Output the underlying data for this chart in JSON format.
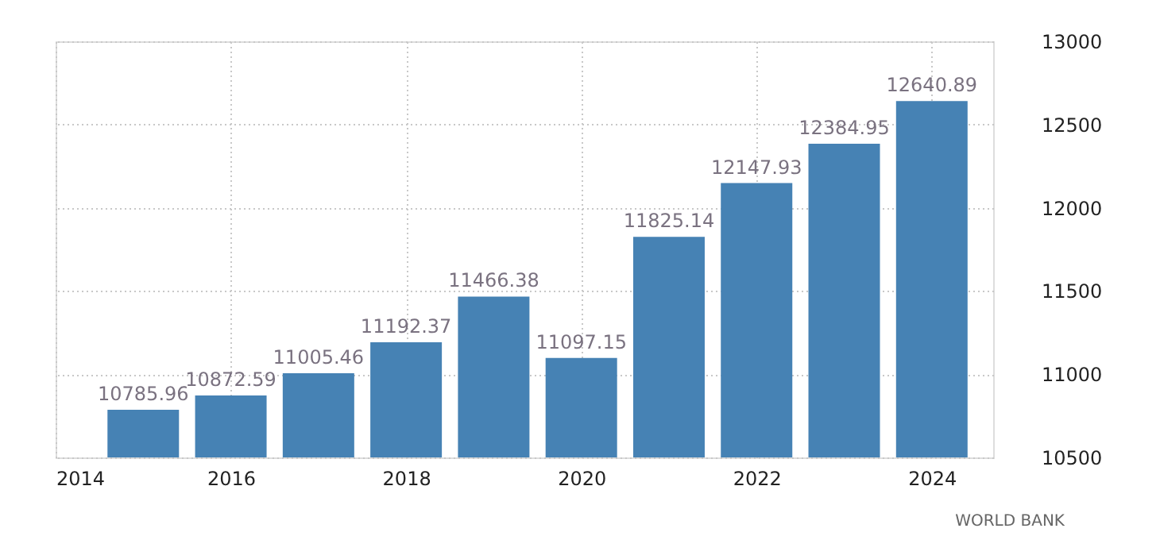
{
  "chart_data": {
    "type": "bar",
    "x": [
      2015,
      2016,
      2017,
      2018,
      2019,
      2020,
      2021,
      2022,
      2023,
      2024
    ],
    "values": [
      10785.96,
      10872.59,
      11005.46,
      11192.37,
      11466.38,
      11097.15,
      11825.14,
      12147.93,
      12384.95,
      12640.89
    ],
    "color": "#4682b4",
    "xlim": [
      2014,
      2024.7
    ],
    "xticks": [
      2014,
      2016,
      2018,
      2020,
      2022,
      2024
    ],
    "ylim": [
      10500,
      13000
    ],
    "yticks": [
      10500,
      11000,
      11500,
      12000,
      12500,
      13000
    ],
    "grid": true,
    "data_labels": true,
    "annotations": [
      "WORLD BANK"
    ]
  }
}
